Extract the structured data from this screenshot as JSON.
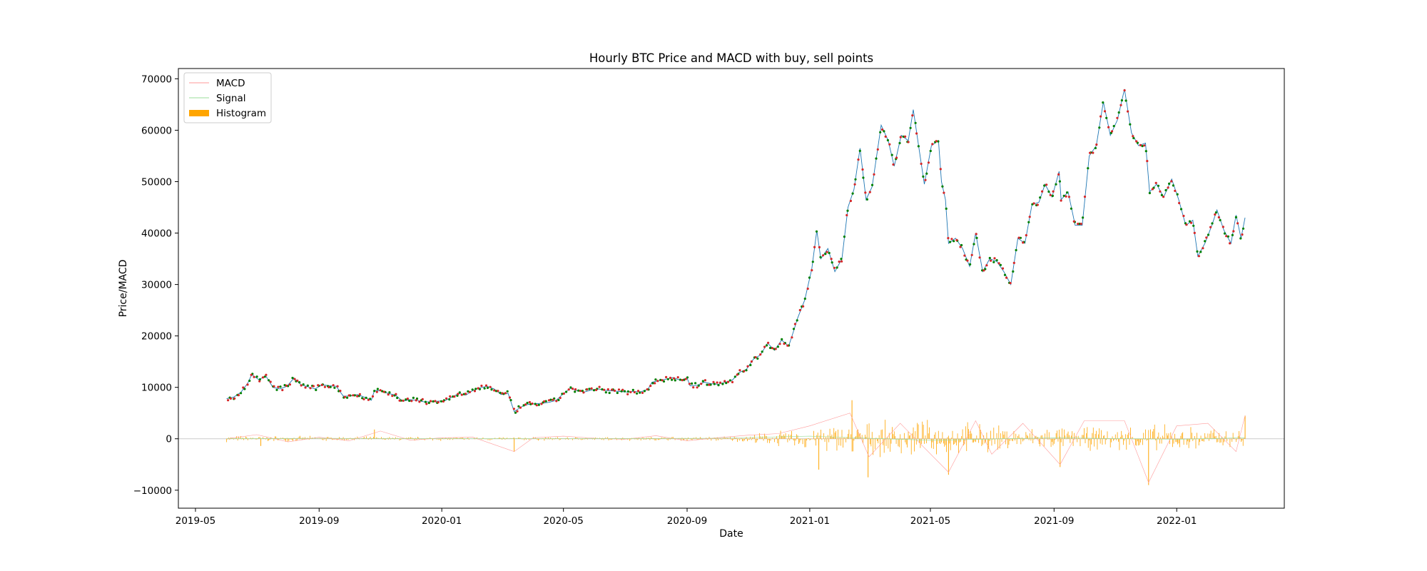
{
  "chart_data": {
    "type": "line",
    "title": "Hourly BTC Price and MACD with buy, sell points",
    "xlabel": "Date",
    "ylabel": "Price/MACD",
    "ylim": [
      -13500,
      72000
    ],
    "xlim": [
      "2019-04-14",
      "2022-04-18"
    ],
    "y_ticks": [
      -10000,
      0,
      10000,
      20000,
      30000,
      40000,
      50000,
      60000,
      70000
    ],
    "y_tick_labels": [
      "−10000",
      "0",
      "10000",
      "20000",
      "30000",
      "40000",
      "50000",
      "60000",
      "70000"
    ],
    "x_ticks": [
      "2019-05-01",
      "2019-09-01",
      "2020-01-01",
      "2020-05-01",
      "2020-09-01",
      "2021-01-01",
      "2021-05-01",
      "2021-09-01",
      "2022-01-01"
    ],
    "x_tick_labels": [
      "2019-05",
      "2019-09",
      "2020-01",
      "2020-05",
      "2020-09",
      "2021-01",
      "2021-05",
      "2021-09",
      "2022-01"
    ],
    "grid": false,
    "legend_position": "top-left",
    "legend": [
      {
        "label": "MACD",
        "color": "#ff9999",
        "kind": "line"
      },
      {
        "label": "Signal",
        "color": "#99dd99",
        "kind": "line"
      },
      {
        "label": "Histogram",
        "color": "#ffa500",
        "kind": "patch"
      }
    ],
    "colors": {
      "price": "#1f77b4",
      "buy": "#008000",
      "sell": "#d62728",
      "macd": "#ff9999",
      "signal": "#99dd99",
      "histogram": "#ffa500",
      "zero_line": "#cccccc"
    },
    "series": [
      {
        "name": "Price",
        "role": "price",
        "points": [
          [
            "2019-06-01",
            7800
          ],
          [
            "2019-06-08",
            8100
          ],
          [
            "2019-06-15",
            9000
          ],
          [
            "2019-06-22",
            10800
          ],
          [
            "2019-06-26",
            12500
          ],
          [
            "2019-07-03",
            11500
          ],
          [
            "2019-07-10",
            12200
          ],
          [
            "2019-07-17",
            10000
          ],
          [
            "2019-07-24",
            9700
          ],
          [
            "2019-07-31",
            10200
          ],
          [
            "2019-08-07",
            11800
          ],
          [
            "2019-08-14",
            10500
          ],
          [
            "2019-08-21",
            10100
          ],
          [
            "2019-08-28",
            9700
          ],
          [
            "2019-09-04",
            10500
          ],
          [
            "2019-09-11",
            10300
          ],
          [
            "2019-09-18",
            10200
          ],
          [
            "2019-09-25",
            8300
          ],
          [
            "2019-10-02",
            8300
          ],
          [
            "2019-10-09",
            8600
          ],
          [
            "2019-10-16",
            8100
          ],
          [
            "2019-10-23",
            7500
          ],
          [
            "2019-10-26",
            9400
          ],
          [
            "2019-11-02",
            9300
          ],
          [
            "2019-11-09",
            8800
          ],
          [
            "2019-11-16",
            8500
          ],
          [
            "2019-11-23",
            7300
          ],
          [
            "2019-11-30",
            7600
          ],
          [
            "2019-12-07",
            7500
          ],
          [
            "2019-12-14",
            7200
          ],
          [
            "2019-12-21",
            7200
          ],
          [
            "2019-12-28",
            7300
          ],
          [
            "2020-01-04",
            7400
          ],
          [
            "2020-01-11",
            8100
          ],
          [
            "2020-01-18",
            8800
          ],
          [
            "2020-01-25",
            8500
          ],
          [
            "2020-02-01",
            9400
          ],
          [
            "2020-02-08",
            9900
          ],
          [
            "2020-02-15",
            10200
          ],
          [
            "2020-02-22",
            9700
          ],
          [
            "2020-02-29",
            8600
          ],
          [
            "2020-03-07",
            8800
          ],
          [
            "2020-03-13",
            5300
          ],
          [
            "2020-03-20",
            6200
          ],
          [
            "2020-03-27",
            6700
          ],
          [
            "2020-04-03",
            6800
          ],
          [
            "2020-04-10",
            6900
          ],
          [
            "2020-04-17",
            7100
          ],
          [
            "2020-04-24",
            7500
          ],
          [
            "2020-05-01",
            8800
          ],
          [
            "2020-05-08",
            9800
          ],
          [
            "2020-05-15",
            9300
          ],
          [
            "2020-05-22",
            9100
          ],
          [
            "2020-05-29",
            9500
          ],
          [
            "2020-06-05",
            9700
          ],
          [
            "2020-06-12",
            9400
          ],
          [
            "2020-06-19",
            9300
          ],
          [
            "2020-06-26",
            9200
          ],
          [
            "2020-07-03",
            9100
          ],
          [
            "2020-07-10",
            9200
          ],
          [
            "2020-07-17",
            9150
          ],
          [
            "2020-07-24",
            9600
          ],
          [
            "2020-07-28",
            11000
          ],
          [
            "2020-08-04",
            11300
          ],
          [
            "2020-08-11",
            11600
          ],
          [
            "2020-08-18",
            11900
          ],
          [
            "2020-08-25",
            11400
          ],
          [
            "2020-09-01",
            11800
          ],
          [
            "2020-09-04",
            10300
          ],
          [
            "2020-09-11",
            10400
          ],
          [
            "2020-09-18",
            11000
          ],
          [
            "2020-09-25",
            10700
          ],
          [
            "2020-10-02",
            10600
          ],
          [
            "2020-10-09",
            11000
          ],
          [
            "2020-10-16",
            11400
          ],
          [
            "2020-10-23",
            12900
          ],
          [
            "2020-10-30",
            13500
          ],
          [
            "2020-11-06",
            15500
          ],
          [
            "2020-11-13",
            16300
          ],
          [
            "2020-11-20",
            18600
          ],
          [
            "2020-11-27",
            17200
          ],
          [
            "2020-12-04",
            19200
          ],
          [
            "2020-12-11",
            18000
          ],
          [
            "2020-12-16",
            21000
          ],
          [
            "2020-12-20",
            23500
          ],
          [
            "2020-12-27",
            27000
          ],
          [
            "2021-01-03",
            33000
          ],
          [
            "2021-01-08",
            40500
          ],
          [
            "2021-01-12",
            35000
          ],
          [
            "2021-01-19",
            37000
          ],
          [
            "2021-01-26",
            32500
          ],
          [
            "2021-02-02",
            35000
          ],
          [
            "2021-02-08",
            45000
          ],
          [
            "2021-02-14",
            48500
          ],
          [
            "2021-02-20",
            56500
          ],
          [
            "2021-02-26",
            46500
          ],
          [
            "2021-03-04",
            49000
          ],
          [
            "2021-03-13",
            61000
          ],
          [
            "2021-03-20",
            58000
          ],
          [
            "2021-03-26",
            53000
          ],
          [
            "2021-04-02",
            59000
          ],
          [
            "2021-04-09",
            58000
          ],
          [
            "2021-04-14",
            64000
          ],
          [
            "2021-04-20",
            56000
          ],
          [
            "2021-04-25",
            49500
          ],
          [
            "2021-05-02",
            57000
          ],
          [
            "2021-05-09",
            58000
          ],
          [
            "2021-05-12",
            50000
          ],
          [
            "2021-05-16",
            46500
          ],
          [
            "2021-05-19",
            38000
          ],
          [
            "2021-05-26",
            39000
          ],
          [
            "2021-06-02",
            37000
          ],
          [
            "2021-06-09",
            33500
          ],
          [
            "2021-06-15",
            40000
          ],
          [
            "2021-06-22",
            32500
          ],
          [
            "2021-06-29",
            35000
          ],
          [
            "2021-07-06",
            34500
          ],
          [
            "2021-07-13",
            32500
          ],
          [
            "2021-07-20",
            30000
          ],
          [
            "2021-07-27",
            39000
          ],
          [
            "2021-08-03",
            38000
          ],
          [
            "2021-08-10",
            45500
          ],
          [
            "2021-08-17",
            46000
          ],
          [
            "2021-08-23",
            49500
          ],
          [
            "2021-08-30",
            47000
          ],
          [
            "2021-09-06",
            52000
          ],
          [
            "2021-09-08",
            46500
          ],
          [
            "2021-09-15",
            48000
          ],
          [
            "2021-09-22",
            41500
          ],
          [
            "2021-09-29",
            41500
          ],
          [
            "2021-10-06",
            55000
          ],
          [
            "2021-10-13",
            57000
          ],
          [
            "2021-10-20",
            65500
          ],
          [
            "2021-10-27",
            59000
          ],
          [
            "2021-11-03",
            62000
          ],
          [
            "2021-11-10",
            68000
          ],
          [
            "2021-11-17",
            59500
          ],
          [
            "2021-11-24",
            57000
          ],
          [
            "2021-12-01",
            57500
          ],
          [
            "2021-12-05",
            48000
          ],
          [
            "2021-12-12",
            49500
          ],
          [
            "2021-12-19",
            47000
          ],
          [
            "2021-12-27",
            50500
          ],
          [
            "2022-01-03",
            46500
          ],
          [
            "2022-01-10",
            41500
          ],
          [
            "2022-01-17",
            42500
          ],
          [
            "2022-01-22",
            35500
          ],
          [
            "2022-01-29",
            38000
          ],
          [
            "2022-02-05",
            41500
          ],
          [
            "2022-02-10",
            44500
          ],
          [
            "2022-02-17",
            40500
          ],
          [
            "2022-02-24",
            38000
          ],
          [
            "2022-03-01",
            43500
          ],
          [
            "2022-03-06",
            39000
          ],
          [
            "2022-03-10",
            43000
          ]
        ]
      },
      {
        "name": "MACD",
        "role": "macd",
        "points": [
          [
            "2019-06-01",
            0
          ],
          [
            "2019-07-01",
            800
          ],
          [
            "2019-08-01",
            -600
          ],
          [
            "2019-09-01",
            300
          ],
          [
            "2019-10-01",
            -400
          ],
          [
            "2019-11-01",
            1500
          ],
          [
            "2019-12-01",
            -300
          ],
          [
            "2020-01-01",
            200
          ],
          [
            "2020-02-01",
            300
          ],
          [
            "2020-03-13",
            -2500
          ],
          [
            "2020-04-01",
            200
          ],
          [
            "2020-05-01",
            500
          ],
          [
            "2020-06-01",
            100
          ],
          [
            "2020-07-01",
            -100
          ],
          [
            "2020-08-01",
            600
          ],
          [
            "2020-09-01",
            -400
          ],
          [
            "2020-10-01",
            200
          ],
          [
            "2020-11-01",
            700
          ],
          [
            "2020-12-01",
            1000
          ],
          [
            "2021-01-01",
            2500
          ],
          [
            "2021-02-10",
            5000
          ],
          [
            "2021-03-01",
            -3500
          ],
          [
            "2021-04-01",
            3000
          ],
          [
            "2021-05-19",
            -6500
          ],
          [
            "2021-06-15",
            3500
          ],
          [
            "2021-07-01",
            -3000
          ],
          [
            "2021-08-01",
            3000
          ],
          [
            "2021-09-07",
            -5000
          ],
          [
            "2021-10-01",
            3500
          ],
          [
            "2021-11-10",
            3500
          ],
          [
            "2021-12-04",
            -8500
          ],
          [
            "2022-01-01",
            2500
          ],
          [
            "2022-02-01",
            3000
          ],
          [
            "2022-03-01",
            -2500
          ],
          [
            "2022-03-10",
            4500
          ]
        ]
      },
      {
        "name": "Signal",
        "role": "signal",
        "points": [
          [
            "2019-06-01",
            0
          ],
          [
            "2019-09-01",
            100
          ],
          [
            "2020-01-01",
            0
          ],
          [
            "2020-06-01",
            50
          ],
          [
            "2020-10-01",
            100
          ],
          [
            "2021-01-01",
            500
          ],
          [
            "2021-05-01",
            -300
          ],
          [
            "2021-09-01",
            200
          ],
          [
            "2022-01-01",
            -100
          ],
          [
            "2022-03-10",
            200
          ]
        ]
      },
      {
        "name": "Histogram",
        "role": "histogram",
        "amplitude": [
          [
            "2019-06-01",
            700
          ],
          [
            "2019-11-01",
            500
          ],
          [
            "2020-06-01",
            400
          ],
          [
            "2020-10-15",
            600
          ],
          [
            "2020-12-20",
            2200
          ],
          [
            "2021-02-01",
            3500
          ],
          [
            "2021-05-15",
            4000
          ],
          [
            "2021-08-01",
            2600
          ],
          [
            "2021-10-15",
            2600
          ],
          [
            "2021-12-05",
            3200
          ],
          [
            "2022-03-10",
            2200
          ]
        ],
        "spikes": [
          [
            "2019-07-05",
            -1400
          ],
          [
            "2019-10-26",
            1800
          ],
          [
            "2020-03-13",
            -2500
          ],
          [
            "2021-01-10",
            -6000
          ],
          [
            "2021-02-12",
            7500
          ],
          [
            "2021-02-28",
            -7500
          ],
          [
            "2021-05-19",
            -7000
          ],
          [
            "2021-09-07",
            -5500
          ],
          [
            "2021-12-04",
            -9000
          ],
          [
            "2022-03-10",
            4500
          ]
        ]
      },
      {
        "name": "Buy points",
        "role": "buy",
        "marker": "dot",
        "count": 260
      },
      {
        "name": "Sell points",
        "role": "sell",
        "marker": "dot",
        "count": 260
      }
    ]
  }
}
